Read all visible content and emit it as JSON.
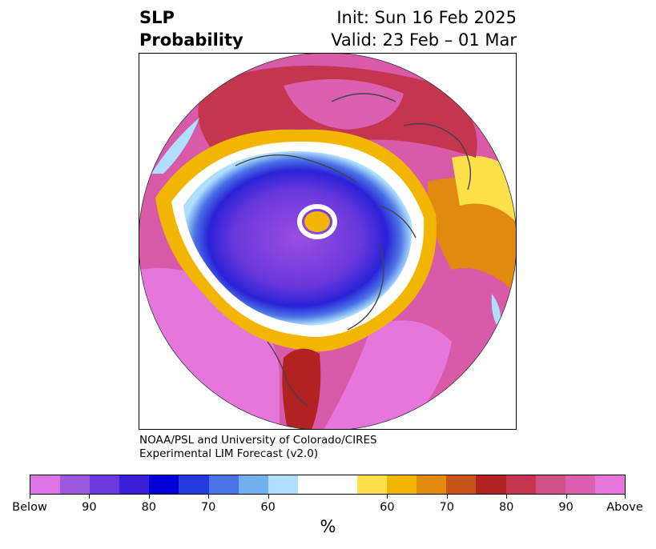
{
  "title": {
    "left_line1": "SLP",
    "left_line2": "Probability",
    "right_line1": "Init: Sun 16 Feb 2025",
    "right_line2": "Valid: 23 Feb – 01 Mar"
  },
  "map": {
    "projection": "north-polar-stereographic",
    "field": "sea level pressure probability",
    "features": [
      "coastlines",
      "country-borders",
      "us-state-borders"
    ]
  },
  "credit": {
    "line1": "NOAA/PSL and University of Colorado/CIRES",
    "line2": "Experimental LIM Forecast (v2.0)"
  },
  "colorbar": {
    "colors": [
      "#dc74e6",
      "#9d57e0",
      "#6a38dc",
      "#3a1fd9",
      "#0000d6",
      "#2338dd",
      "#4a72e6",
      "#70b0f0",
      "#afdffc",
      "#ffffff",
      "#ffffff",
      "#fee04a",
      "#f2b600",
      "#e08a10",
      "#c65418",
      "#b22222",
      "#c43550",
      "#d05088",
      "#dc60b0",
      "#e676dc"
    ],
    "tick_labels": [
      "Below",
      "90",
      "80",
      "70",
      "60",
      "60",
      "70",
      "80",
      "90",
      "Above"
    ],
    "unit": "%"
  }
}
